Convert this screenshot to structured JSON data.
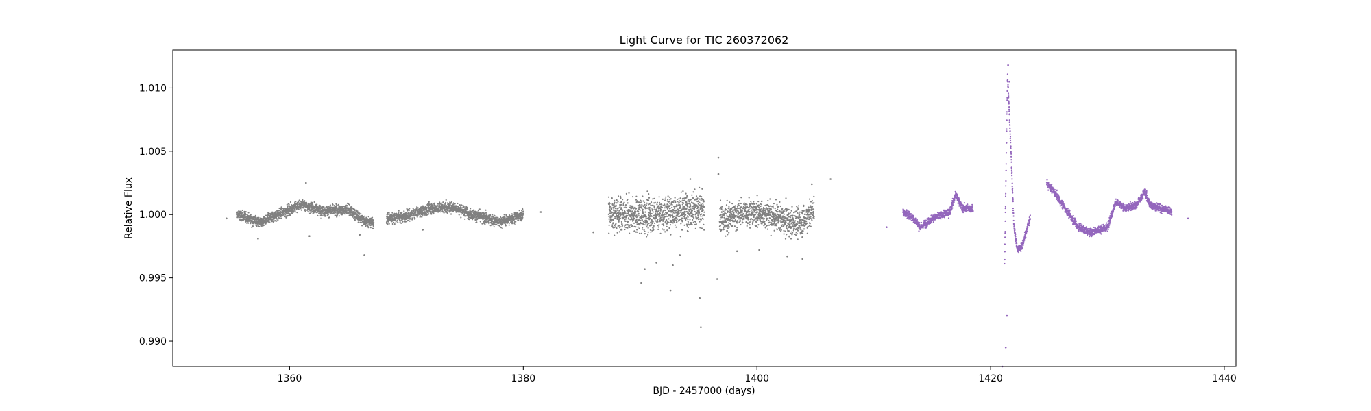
{
  "chart_data": {
    "type": "scatter",
    "title": "Light Curve for TIC 260372062",
    "xlabel": "BJD - 2457000 (days)",
    "ylabel": "Relative Flux",
    "xlim": [
      1350,
      1441
    ],
    "ylim": [
      0.988,
      1.013
    ],
    "xticks": [
      1360,
      1380,
      1400,
      1420,
      1440
    ],
    "xtick_labels": [
      "1360",
      "1380",
      "1400",
      "1420",
      "1440"
    ],
    "yticks": [
      0.99,
      0.995,
      1.0,
      1.005,
      1.01
    ],
    "ytick_labels": [
      "0.990",
      "0.995",
      "1.000",
      "1.005",
      "1.010"
    ],
    "grid": false,
    "legend": "none",
    "series_colors": [
      "#808080",
      "#9467bd"
    ],
    "segments": [
      {
        "color_index": 0,
        "x_range": [
          1355.5,
          1367.2
        ],
        "scatter": 0.00035,
        "trend": [
          [
            1355.5,
            1.0
          ],
          [
            1357.5,
            0.9994
          ],
          [
            1359.5,
            1.0002
          ],
          [
            1361,
            1.0008
          ],
          [
            1363,
            1.0003
          ],
          [
            1365,
            1.0004
          ],
          [
            1366.3,
            0.9996
          ],
          [
            1367.2,
            0.9993
          ]
        ]
      },
      {
        "color_index": 0,
        "x_range": [
          1368.3,
          1380.0
        ],
        "scatter": 0.00035,
        "trend": [
          [
            1368.3,
            0.9997
          ],
          [
            1370,
            0.9999
          ],
          [
            1372,
            1.0005
          ],
          [
            1374,
            1.0006
          ],
          [
            1376,
            0.9999
          ],
          [
            1378,
            0.9994
          ],
          [
            1380,
            1.0
          ]
        ]
      },
      {
        "color_index": 0,
        "x_range": [
          1387.3,
          1395.5
        ],
        "scatter": 0.0011,
        "trend": [
          [
            1387.3,
            1.0001
          ],
          [
            1390,
            0.9999
          ],
          [
            1392,
            1.0001
          ],
          [
            1394,
            1.0004
          ],
          [
            1395.5,
            1.0003
          ]
        ]
      },
      {
        "color_index": 0,
        "x_range": [
          1396.8,
          1404.9
        ],
        "scatter": 0.0009,
        "trend": [
          [
            1396.8,
            0.9995
          ],
          [
            1399,
            1.0002
          ],
          [
            1401,
            1.0
          ],
          [
            1403,
            0.9993
          ],
          [
            1404,
            0.9995
          ],
          [
            1404.9,
            1.0004
          ]
        ]
      },
      {
        "color_index": 1,
        "x_range": [
          1412.5,
          1418.5
        ],
        "scatter": 0.00025,
        "trend": [
          [
            1412.5,
            1.0002
          ],
          [
            1413.2,
            0.9999
          ],
          [
            1414,
            0.999
          ],
          [
            1415,
            0.9997
          ],
          [
            1416.5,
            1.0002
          ],
          [
            1417,
            1.0016
          ],
          [
            1417.6,
            1.0005
          ],
          [
            1418.5,
            1.0005
          ]
        ]
      },
      {
        "color_index": 1,
        "x_range": [
          1421.2,
          1423.4
        ],
        "scatter": 0.00025,
        "trend": [
          [
            1421.2,
            0.996
          ],
          [
            1421.45,
            1.011
          ],
          [
            1421.7,
            1.006
          ],
          [
            1422.0,
            0.999
          ],
          [
            1422.3,
            0.9972
          ],
          [
            1422.7,
            0.9975
          ],
          [
            1423.4,
            0.9998
          ]
        ]
      },
      {
        "color_index": 1,
        "x_range": [
          1424.8,
          1435.5
        ],
        "scatter": 0.00025,
        "trend": [
          [
            1424.8,
            1.0025
          ],
          [
            1425.5,
            1.0017
          ],
          [
            1426.5,
            1.0003
          ],
          [
            1427.5,
            0.999
          ],
          [
            1428.5,
            0.9986
          ],
          [
            1430,
            0.999
          ],
          [
            1430.7,
            1.001
          ],
          [
            1431.5,
            1.0005
          ],
          [
            1432.5,
            1.0008
          ],
          [
            1433.2,
            1.0018
          ],
          [
            1433.6,
            1.0008
          ],
          [
            1434.5,
            1.0005
          ],
          [
            1435.5,
            1.0003
          ]
        ]
      }
    ],
    "points": [
      {
        "x": 1354.6,
        "y": 0.9997,
        "color_index": 0
      },
      {
        "x": 1357.3,
        "y": 0.9981,
        "color_index": 0
      },
      {
        "x": 1361.4,
        "y": 1.0025,
        "color_index": 0
      },
      {
        "x": 1361.7,
        "y": 0.9983,
        "color_index": 0
      },
      {
        "x": 1366.4,
        "y": 0.9968,
        "color_index": 0
      },
      {
        "x": 1366.0,
        "y": 0.9984,
        "color_index": 0
      },
      {
        "x": 1371.4,
        "y": 0.9988,
        "color_index": 0
      },
      {
        "x": 1381.5,
        "y": 1.0002,
        "color_index": 0
      },
      {
        "x": 1386.0,
        "y": 0.9986,
        "color_index": 0
      },
      {
        "x": 1390.1,
        "y": 0.9946,
        "color_index": 0
      },
      {
        "x": 1390.4,
        "y": 0.9957,
        "color_index": 0
      },
      {
        "x": 1391.4,
        "y": 0.9962,
        "color_index": 0
      },
      {
        "x": 1392.6,
        "y": 0.994,
        "color_index": 0
      },
      {
        "x": 1392.8,
        "y": 0.996,
        "color_index": 0
      },
      {
        "x": 1393.4,
        "y": 0.9968,
        "color_index": 0
      },
      {
        "x": 1393.6,
        "y": 0.9988,
        "color_index": 0
      },
      {
        "x": 1395.1,
        "y": 0.9934,
        "color_index": 0
      },
      {
        "x": 1395.2,
        "y": 0.9911,
        "color_index": 0
      },
      {
        "x": 1394.3,
        "y": 1.0028,
        "color_index": 0
      },
      {
        "x": 1396.6,
        "y": 0.9949,
        "color_index": 0
      },
      {
        "x": 1396.7,
        "y": 1.0045,
        "color_index": 0
      },
      {
        "x": 1396.7,
        "y": 1.0032,
        "color_index": 0
      },
      {
        "x": 1398.3,
        "y": 0.9971,
        "color_index": 0
      },
      {
        "x": 1400.2,
        "y": 0.9972,
        "color_index": 0
      },
      {
        "x": 1402.6,
        "y": 0.9967,
        "color_index": 0
      },
      {
        "x": 1403.9,
        "y": 0.9965,
        "color_index": 0
      },
      {
        "x": 1404.7,
        "y": 1.0024,
        "color_index": 0
      },
      {
        "x": 1406.3,
        "y": 1.0028,
        "color_index": 0
      },
      {
        "x": 1411.1,
        "y": 0.999,
        "color_index": 1
      },
      {
        "x": 1421.0,
        "y": 0.988,
        "color_index": 1
      },
      {
        "x": 1421.3,
        "y": 0.9895,
        "color_index": 1
      },
      {
        "x": 1421.4,
        "y": 0.992,
        "color_index": 1
      },
      {
        "x": 1421.5,
        "y": 1.0118,
        "color_index": 1
      },
      {
        "x": 1421.6,
        "y": 1.0105,
        "color_index": 1
      },
      {
        "x": 1436.9,
        "y": 0.9997,
        "color_index": 1
      }
    ]
  }
}
